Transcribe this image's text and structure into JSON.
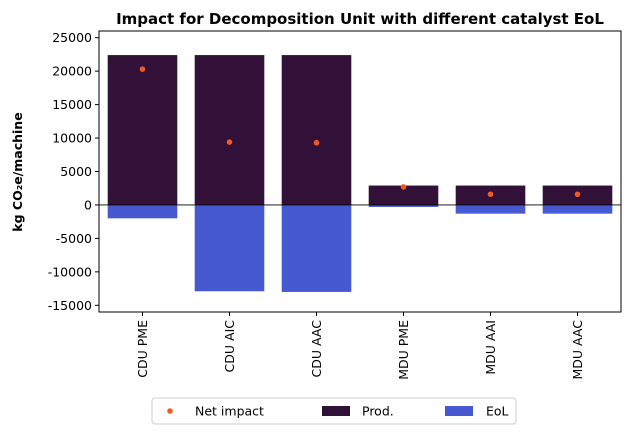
{
  "chart_data": {
    "type": "bar",
    "title": "Impact for Decomposition Unit with different catalyst EoL",
    "ylabel": "kg CO₂e/machine",
    "categories": [
      "CDU PME",
      "CDU AIC",
      "CDU AAC",
      "MDU PME",
      "MDU AAI",
      "MDU AAC"
    ],
    "ylim": [
      -16000,
      26000
    ],
    "yticks": [
      -15000,
      -10000,
      -5000,
      0,
      5000,
      10000,
      15000,
      20000,
      25000
    ],
    "series": [
      {
        "name": "Prod.",
        "type": "bar",
        "color": "#321139",
        "values": [
          22400,
          22400,
          22400,
          2900,
          2900,
          2900
        ]
      },
      {
        "name": "EoL",
        "type": "bar",
        "color": "#4759d1",
        "values": [
          -2000,
          -12900,
          -13000,
          -300,
          -1300,
          -1300
        ]
      },
      {
        "name": "Net impact",
        "type": "scatter",
        "color": "#f15a22",
        "values": [
          20300,
          9400,
          9300,
          2700,
          1600,
          1600
        ]
      }
    ],
    "legend": {
      "placement": "bottom-center",
      "order": [
        "Net impact",
        "Prod.",
        "EoL"
      ]
    },
    "grid": false
  }
}
